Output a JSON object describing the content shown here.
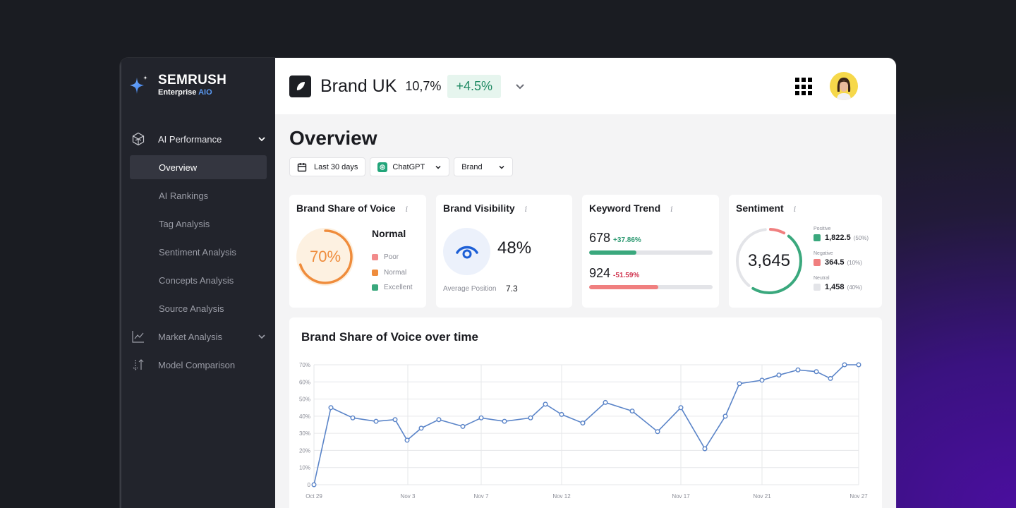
{
  "sidebar": {
    "logo": {
      "brand": "SEMRUSH",
      "sub": "Enterprise",
      "sub_accent": "AIO"
    },
    "sections": [
      {
        "label": "AI Performance",
        "icon": "cube-icon",
        "expanded": true,
        "items": [
          {
            "label": "Overview",
            "active": true
          },
          {
            "label": "AI Rankings"
          },
          {
            "label": "Tag Analysis"
          },
          {
            "label": "Sentiment Analysis"
          },
          {
            "label": "Concepts Analysis"
          },
          {
            "label": "Source Analysis"
          }
        ]
      },
      {
        "label": "Market Analysis",
        "icon": "line-chart-icon",
        "expanded": false
      },
      {
        "label": "Model Comparison",
        "icon": "sort-arrows-icon"
      }
    ]
  },
  "header": {
    "brand_name": "Brand UK",
    "share": "10,7%",
    "delta": "+4.5%"
  },
  "page": {
    "title": "Overview",
    "filters": {
      "date": "Last 30 days",
      "model": "ChatGPT",
      "entity": "Brand"
    }
  },
  "cards": {
    "share_of_voice": {
      "title": "Brand Share of Voice",
      "value": "70%",
      "status": "Normal",
      "legend": [
        {
          "label": "Poor",
          "color": "#f28b8b"
        },
        {
          "label": "Normal",
          "color": "#ef8c3c"
        },
        {
          "label": "Excellent",
          "color": "#3aa87d"
        }
      ]
    },
    "visibility": {
      "title": "Brand Visibility",
      "value": "48%",
      "avg_position_label": "Average Position",
      "avg_position": "7.3"
    },
    "keyword_trend": {
      "title": "Keyword Trend",
      "rows": [
        {
          "value": "678",
          "change": "+37.86%",
          "fill_pct": 38,
          "color": "#3aa87d",
          "text_color": "#2f9a73"
        },
        {
          "value": "924",
          "change": "-51.59%",
          "fill_pct": 56,
          "color": "#f07f7f",
          "text_color": "#d0344f"
        }
      ]
    },
    "sentiment": {
      "title": "Sentiment",
      "total": "3,645",
      "segments": [
        {
          "label": "Positive",
          "value": "1,822.5",
          "pct": "(50%)",
          "color": "#3aa87d"
        },
        {
          "label": "Negative",
          "value": "364.5",
          "pct": "(10%)",
          "color": "#f07f7f"
        },
        {
          "label": "Neutral",
          "value": "1,458",
          "pct": "(40%)",
          "color": "#e3e4e8"
        }
      ]
    }
  },
  "chart_data": {
    "type": "line",
    "title": "Brand Share of Voice over time",
    "xlabel": "",
    "ylabel": "",
    "ylim": [
      0,
      70
    ],
    "y_ticks": [
      "0",
      "10%",
      "20%",
      "30%",
      "40%",
      "50%",
      "60%",
      "70%"
    ],
    "x_tick_labels": [
      "Oct 29",
      "Nov 3",
      "Nov 7",
      "Nov 12",
      "Nov 17",
      "Nov 21",
      "Nov 27"
    ],
    "grid": true,
    "series": [
      {
        "name": "Brand Share of Voice",
        "color": "#5a84c8",
        "values": [
          0,
          45,
          39,
          37,
          38,
          26,
          33,
          38,
          34,
          39,
          37,
          39,
          47,
          41,
          36,
          48,
          43,
          31,
          45,
          21,
          40,
          59,
          61,
          64,
          67,
          66,
          62,
          70,
          70
        ]
      }
    ]
  }
}
